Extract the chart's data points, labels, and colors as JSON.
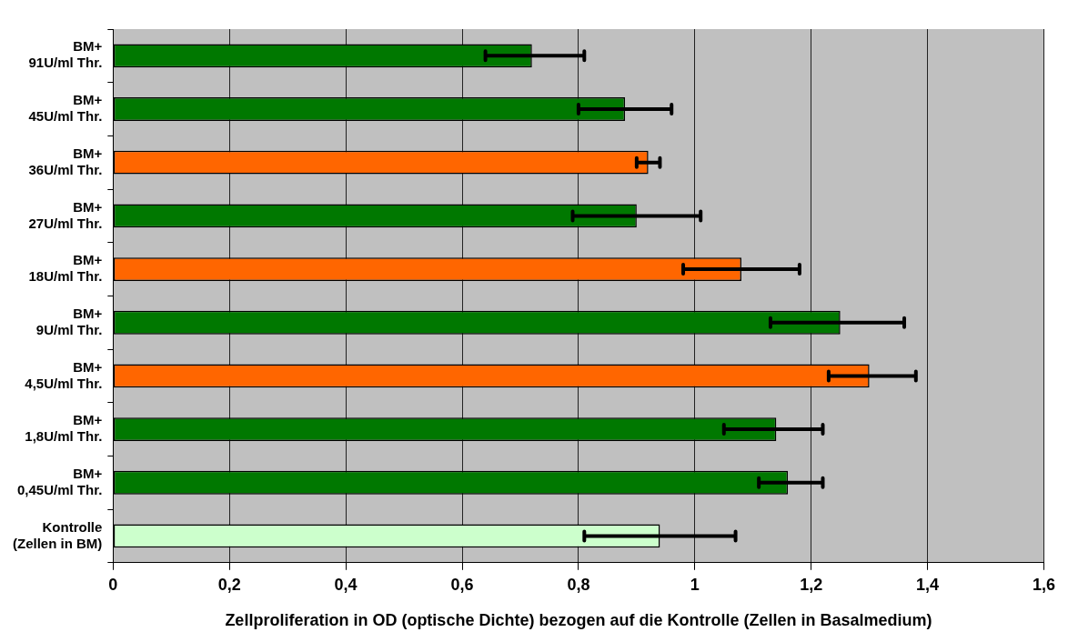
{
  "chart_data": {
    "type": "bar",
    "orientation": "horizontal",
    "xlabel": "Zellproliferation in OD (optische Dichte) bezogen auf die Kontrolle (Zellen in Basalmedium)",
    "categories": [
      "BM+\n91U/ml Thr.",
      "BM+\n45U/ml Thr.",
      "BM+\n36U/ml Thr.",
      "BM+\n27U/ml Thr.",
      "BM+\n18U/ml Thr.",
      "BM+\n9U/ml Thr.",
      "BM+\n4,5U/ml Thr.",
      "BM+\n1,8U/ml Thr.",
      "BM+\n0,45U/ml Thr.",
      "Kontrolle\n(Zellen in BM)"
    ],
    "values": [
      0.72,
      0.88,
      0.92,
      0.9,
      1.08,
      1.25,
      1.3,
      1.14,
      1.16,
      0.94
    ],
    "colors": [
      "#007800",
      "#007800",
      "#ff6600",
      "#007800",
      "#ff6600",
      "#007800",
      "#ff6600",
      "#007800",
      "#007800",
      "#ccffcc"
    ],
    "errors": [
      [
        0.64,
        0.81
      ],
      [
        0.8,
        0.96
      ],
      [
        0.9,
        0.94
      ],
      [
        0.79,
        1.01
      ],
      [
        0.98,
        1.18
      ],
      [
        1.13,
        1.36
      ],
      [
        1.23,
        1.38
      ],
      [
        1.05,
        1.22
      ],
      [
        1.11,
        1.22
      ],
      [
        0.81,
        1.07
      ]
    ],
    "xlim": [
      0,
      1.6
    ],
    "xticks": [
      {
        "value": 0,
        "label": "0"
      },
      {
        "value": 0.2,
        "label": "0,2"
      },
      {
        "value": 0.4,
        "label": "0,4"
      },
      {
        "value": 0.6,
        "label": "0,6"
      },
      {
        "value": 0.8,
        "label": "0,8"
      },
      {
        "value": 1,
        "label": "1"
      },
      {
        "value": 1.2,
        "label": "1,2"
      },
      {
        "value": 1.4,
        "label": "1,4"
      },
      {
        "value": 1.6,
        "label": "1,6"
      }
    ],
    "grid": "x",
    "legend": false
  }
}
